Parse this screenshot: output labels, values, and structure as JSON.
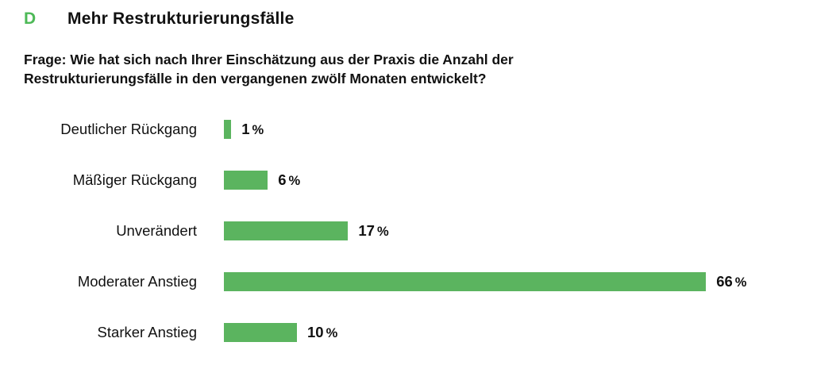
{
  "header": {
    "marker": "D",
    "title": "Mehr Restrukturierungsfälle",
    "question_lines": [
      "Frage: Wie hat sich nach Ihrer Einschätzung aus der Praxis die Anzahl der",
      "Restrukturierungsfälle in den vergangenen zwölf Monaten entwickelt?"
    ]
  },
  "colors": {
    "bar_green": "#5bb45f",
    "marker_green": "#4db957",
    "text": "#111111",
    "background": "#ffffff"
  },
  "chart_data": {
    "type": "bar",
    "orientation": "horizontal",
    "title": "Mehr Restrukturierungsfälle",
    "categories": [
      "Deutlicher Rückgang",
      "Mäßiger Rückgang",
      "Unverändert",
      "Moderater Anstieg",
      "Starker Anstieg"
    ],
    "values": [
      1,
      6,
      17,
      66,
      10
    ],
    "unit": "%",
    "value_labels": [
      "1 %",
      "6 %",
      "17 %",
      "66 %",
      "10 %"
    ],
    "xlim": [
      0,
      66
    ],
    "grid": false,
    "legend_position": "none"
  }
}
